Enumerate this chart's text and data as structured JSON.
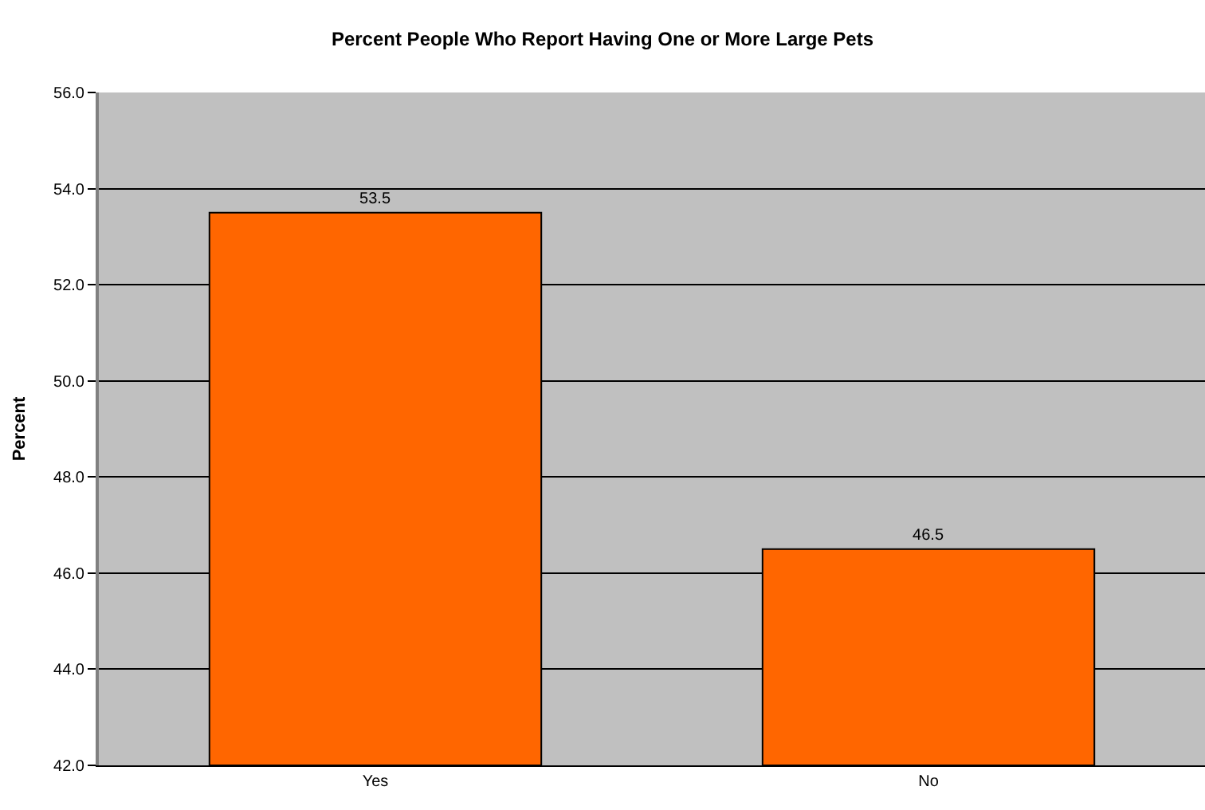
{
  "chart_data": {
    "type": "bar",
    "title": "Percent People Who Report Having One or More Large Pets",
    "ylabel": "Percent",
    "categories": [
      "Yes",
      "No"
    ],
    "values": [
      53.5,
      46.5
    ],
    "color": "#ff6600",
    "ylim": [
      42,
      56
    ],
    "yticks": [
      {
        "value": 42,
        "label": "42.0"
      },
      {
        "value": 44,
        "label": "44.0"
      },
      {
        "value": 46,
        "label": "46.0"
      },
      {
        "value": 48,
        "label": "48.0"
      },
      {
        "value": 50,
        "label": "50.0"
      },
      {
        "value": 52,
        "label": "52.0"
      },
      {
        "value": 54,
        "label": "54.0"
      },
      {
        "value": 56,
        "label": "56.0"
      }
    ],
    "grid": "y",
    "data_labels": true
  }
}
